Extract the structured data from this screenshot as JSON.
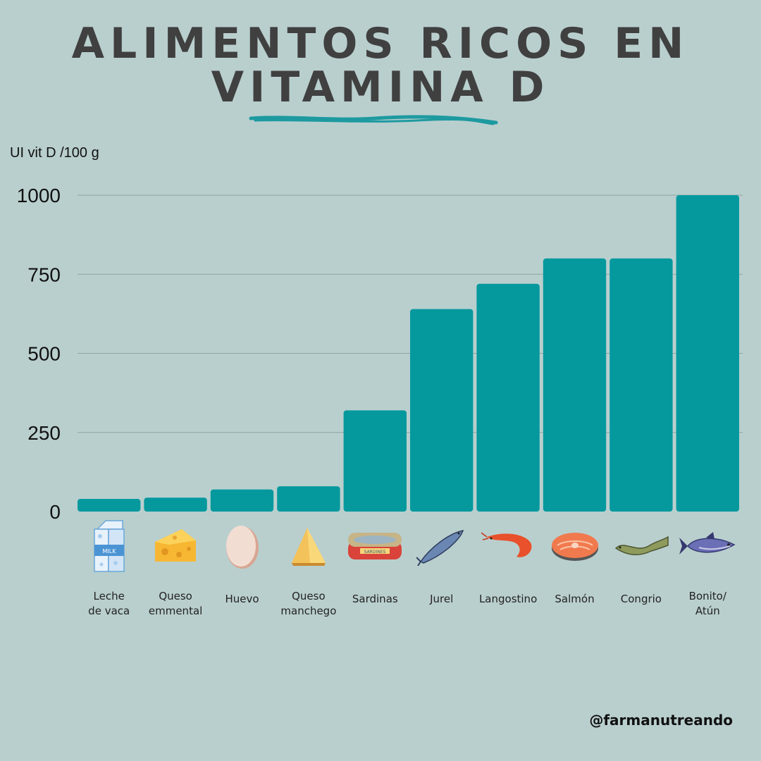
{
  "title_line1": "ALIMENTOS RICOS EN",
  "title_line2": "VITAMINA D",
  "handle": "@farmanutreando",
  "colors": {
    "background": "#b9cfce",
    "bar": "#05999e",
    "underline": "#1d9aa0",
    "grid": "#8aa5a4"
  },
  "chart_data": {
    "type": "bar",
    "ylabel": "UI vit D /100 g",
    "xlabel": "",
    "ylim": [
      0,
      1000
    ],
    "yticks": [
      0,
      250,
      500,
      750,
      1000
    ],
    "grid": true,
    "categories": [
      "Leche\nde vaca",
      "Queso\nemmental",
      "Huevo",
      "Queso\nmanchego",
      "Sardinas",
      "Jurel",
      "Langostino",
      "Salmón",
      "Congrio",
      "Bonito/\nAtún"
    ],
    "icons": [
      "milk-carton-icon",
      "swiss-cheese-icon",
      "egg-icon",
      "manchego-cheese-icon",
      "sardine-can-icon",
      "mackerel-icon",
      "shrimp-icon",
      "salmon-steak-icon",
      "conger-eel-icon",
      "tuna-icon"
    ],
    "values": [
      40,
      44,
      70,
      80,
      320,
      640,
      720,
      800,
      800,
      1000
    ]
  }
}
